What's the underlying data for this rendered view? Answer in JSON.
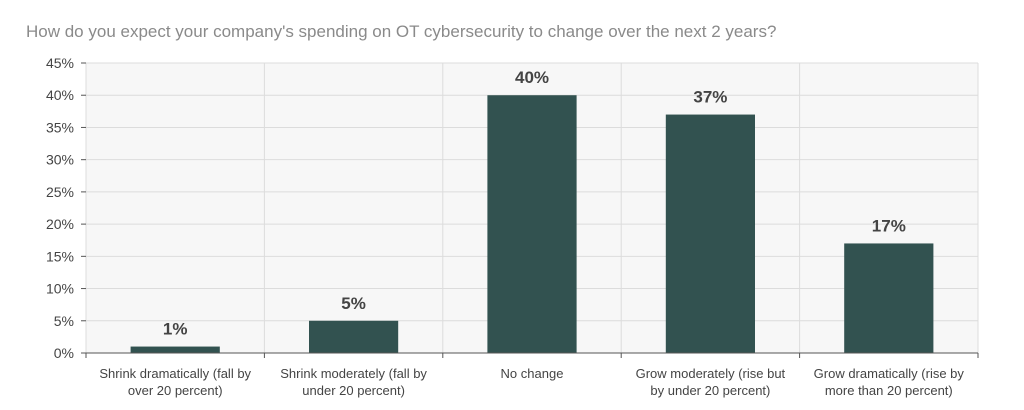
{
  "chart_data": {
    "type": "bar",
    "title": "How do you expect your company's spending on OT cybersecurity to change over the next 2 years?",
    "categories": [
      [
        "Shrink dramatically (fall by",
        "over 20 percent)"
      ],
      [
        "Shrink moderately (fall by",
        "under 20 percent)"
      ],
      [
        "No change"
      ],
      [
        "Grow moderately (rise but",
        "by under 20 percent)"
      ],
      [
        "Grow dramatically (rise by",
        "more than 20 percent)"
      ]
    ],
    "values": [
      1,
      5,
      40,
      37,
      17
    ],
    "data_labels": [
      "1%",
      "5%",
      "40%",
      "37%",
      "17%"
    ],
    "yticks": [
      "0%",
      "5%",
      "10%",
      "15%",
      "20%",
      "25%",
      "30%",
      "35%",
      "40%",
      "45%"
    ],
    "ylim": [
      0,
      45
    ],
    "xlabel": "",
    "ylabel": "",
    "grid": true,
    "colors": {
      "bar": "#325250",
      "plot_bg": "#f7f7f7",
      "grid": "#dcdcdc",
      "axis": "#555555"
    }
  }
}
